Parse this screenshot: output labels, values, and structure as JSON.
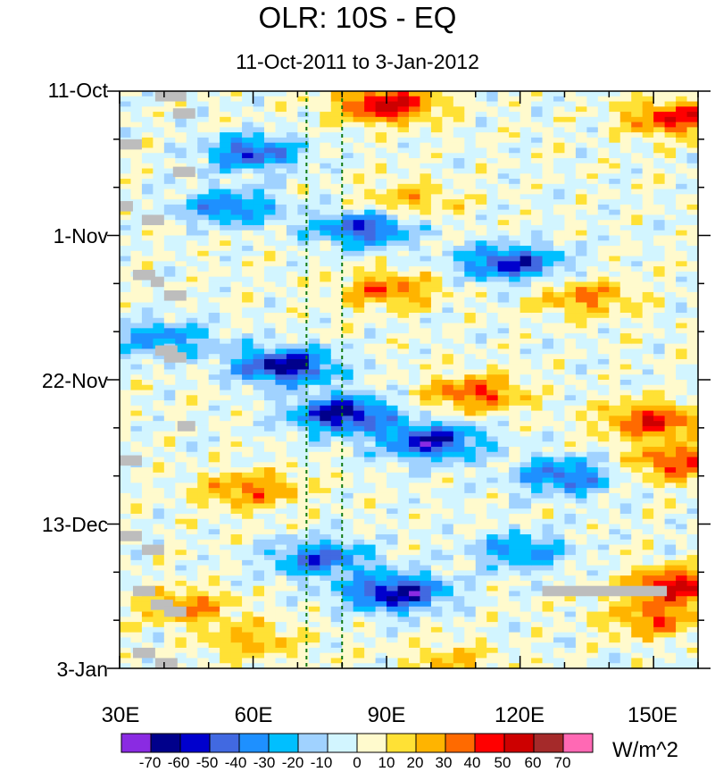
{
  "chart_data": {
    "type": "heatmap",
    "title": "OLR: 10S - EQ",
    "subtitle": "11-Oct-2011 to 3-Jan-2012",
    "xlabel": "",
    "ylabel": "",
    "x_range_deg": [
      30,
      160
    ],
    "x_ticks": [
      {
        "value": 30,
        "label": "30E"
      },
      {
        "value": 60,
        "label": "60E"
      },
      {
        "value": 90,
        "label": "90E"
      },
      {
        "value": 120,
        "label": "120E"
      },
      {
        "value": 150,
        "label": "150E"
      }
    ],
    "y_range_days": [
      0,
      84
    ],
    "y_ticks": [
      {
        "day": 0,
        "label": "11-Oct"
      },
      {
        "day": 21,
        "label": "1-Nov"
      },
      {
        "day": 42,
        "label": "22-Nov"
      },
      {
        "day": 63,
        "label": "13-Dec"
      },
      {
        "day": 84,
        "label": "3-Jan"
      }
    ],
    "reference_lines_lon": [
      72,
      80
    ],
    "colorbar": {
      "units": "W/m^2",
      "levels": [
        -70,
        -60,
        -50,
        -40,
        -30,
        -20,
        -10,
        0,
        10,
        20,
        30,
        40,
        50,
        60,
        70
      ],
      "colors": [
        "#8a2be2",
        "#00008b",
        "#0000cd",
        "#4169e1",
        "#1e90ff",
        "#00bfff",
        "#a0d2ff",
        "#d2f5ff",
        "#fffacd",
        "#ffe135",
        "#ffb400",
        "#ff6a00",
        "#ff0000",
        "#cd0000",
        "#a52a2a",
        "#ff69b4"
      ]
    },
    "anomaly_features": [
      {
        "lon": 90,
        "day": 2,
        "value": 55
      },
      {
        "lon": 155,
        "day": 4,
        "value": 45
      },
      {
        "lon": 60,
        "day": 9,
        "value": -45
      },
      {
        "lon": 95,
        "day": 16,
        "value": 25
      },
      {
        "lon": 55,
        "day": 17,
        "value": -40
      },
      {
        "lon": 85,
        "day": 20,
        "value": -50
      },
      {
        "lon": 118,
        "day": 25,
        "value": -55
      },
      {
        "lon": 90,
        "day": 29,
        "value": 35
      },
      {
        "lon": 135,
        "day": 30,
        "value": 30
      },
      {
        "lon": 40,
        "day": 36,
        "value": -35
      },
      {
        "lon": 67,
        "day": 40,
        "value": -65
      },
      {
        "lon": 110,
        "day": 44,
        "value": 40
      },
      {
        "lon": 80,
        "day": 47,
        "value": -65
      },
      {
        "lon": 100,
        "day": 51,
        "value": -60
      },
      {
        "lon": 150,
        "day": 48,
        "value": 45
      },
      {
        "lon": 60,
        "day": 58,
        "value": 35
      },
      {
        "lon": 130,
        "day": 56,
        "value": -45
      },
      {
        "lon": 155,
        "day": 54,
        "value": 40
      },
      {
        "lon": 75,
        "day": 68,
        "value": -45
      },
      {
        "lon": 92,
        "day": 73,
        "value": -65
      },
      {
        "lon": 120,
        "day": 67,
        "value": -35
      },
      {
        "lon": 45,
        "day": 75,
        "value": 30
      },
      {
        "lon": 60,
        "day": 80,
        "value": 25
      },
      {
        "lon": 150,
        "day": 77,
        "value": 35
      },
      {
        "lon": 155,
        "day": 72,
        "value": 50
      },
      {
        "lon": 105,
        "day": 83,
        "value": 20
      }
    ],
    "missing_data_cells": [
      {
        "lon0": 38,
        "lon1": 45,
        "day0": 0,
        "day1": 1.5
      },
      {
        "lon0": 42,
        "lon1": 47,
        "day0": 2.5,
        "day1": 4
      },
      {
        "lon0": 30,
        "lon1": 35,
        "day0": 7,
        "day1": 8.5
      },
      {
        "lon0": 42,
        "lon1": 47,
        "day0": 11,
        "day1": 12.5
      },
      {
        "lon0": 30,
        "lon1": 33,
        "day0": 16,
        "day1": 17.5
      },
      {
        "lon0": 35,
        "lon1": 40,
        "day0": 18,
        "day1": 19.5
      },
      {
        "lon0": 33,
        "lon1": 38,
        "day0": 26,
        "day1": 27.5
      },
      {
        "lon0": 37,
        "lon1": 40,
        "day0": 27,
        "day1": 28.5
      },
      {
        "lon0": 40,
        "lon1": 45,
        "day0": 29,
        "day1": 30.5
      },
      {
        "lon0": 38,
        "lon1": 43,
        "day0": 37,
        "day1": 38.5
      },
      {
        "lon0": 40,
        "lon1": 45,
        "day0": 38,
        "day1": 39.5
      },
      {
        "lon0": 43,
        "lon1": 47,
        "day0": 48,
        "day1": 49.5
      },
      {
        "lon0": 30,
        "lon1": 35,
        "day0": 53,
        "day1": 54.5
      },
      {
        "lon0": 30,
        "lon1": 35,
        "day0": 64,
        "day1": 65.5
      },
      {
        "lon0": 35,
        "lon1": 40,
        "day0": 66,
        "day1": 67.5
      },
      {
        "lon0": 125,
        "lon1": 153,
        "day0": 72,
        "day1": 73.5
      },
      {
        "lon0": 33,
        "lon1": 38,
        "day0": 72,
        "day1": 73.5
      },
      {
        "lon0": 37,
        "lon1": 42,
        "day0": 74,
        "day1": 75.5
      },
      {
        "lon0": 40,
        "lon1": 45,
        "day0": 75,
        "day1": 76.5
      },
      {
        "lon0": 33,
        "lon1": 38,
        "day0": 81,
        "day1": 82.5
      },
      {
        "lon0": 38,
        "lon1": 43,
        "day0": 82.5,
        "day1": 84
      }
    ]
  }
}
